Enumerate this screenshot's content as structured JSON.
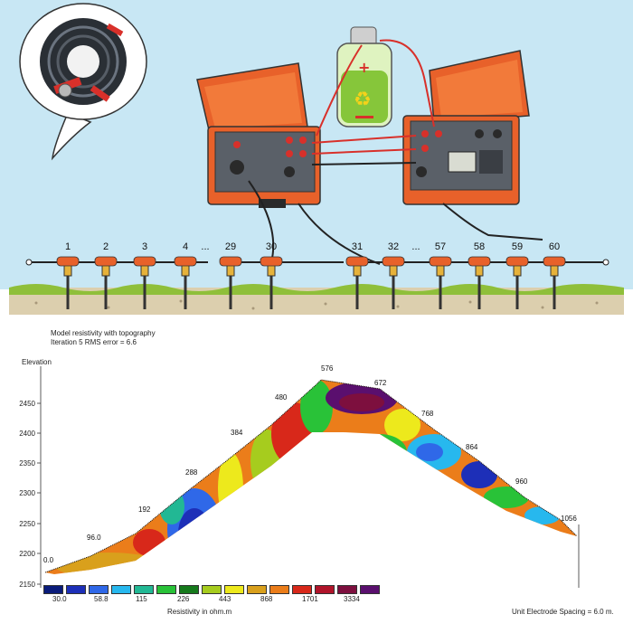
{
  "top": {
    "electrodes_left": [
      "1",
      "2",
      "3",
      "4",
      "29",
      "30"
    ],
    "electrodes_right": [
      "31",
      "32",
      "57",
      "58",
      "59",
      "60"
    ],
    "ellipsis": "..."
  },
  "section": {
    "title_line1": "Model resistivity with topography",
    "title_line2": "Iteration 5 RMS error = 6.6",
    "elevation_label": "Elevation",
    "y_ticks": [
      "2450",
      "2400",
      "2350",
      "2300",
      "2250",
      "2200",
      "2150"
    ],
    "profile_labels": [
      "0.0",
      "96.0",
      "192",
      "288",
      "384",
      "480",
      "576",
      "672",
      "768",
      "864",
      "960",
      "1056"
    ],
    "legend_values": [
      "30.0",
      "58.8",
      "115",
      "226",
      "443",
      "868",
      "1701",
      "3334"
    ],
    "legend_colors": [
      "#0a1b7a",
      "#1d2fb8",
      "#2f68e8",
      "#27b8ee",
      "#22b894",
      "#29c238",
      "#167a1c",
      "#a6cc1e",
      "#ede91c",
      "#d9a01c",
      "#eb7d1a",
      "#d8281a",
      "#b0142a",
      "#7d0f3e",
      "#5a0f6e"
    ],
    "legend_title": "Resistivity in ohm.m",
    "unit_note": "Unit Electrode Spacing = 6.0 m."
  }
}
